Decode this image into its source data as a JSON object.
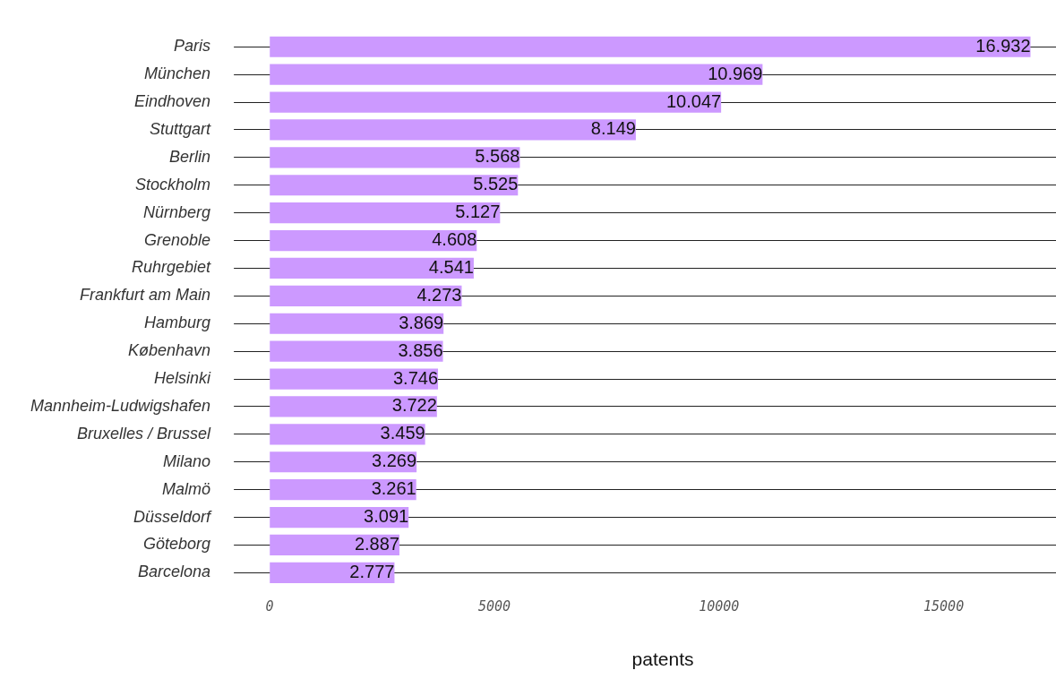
{
  "chart_data": {
    "type": "bar",
    "orientation": "horizontal",
    "xlabel": "patents",
    "categories": [
      "Paris",
      "München",
      "Eindhoven",
      "Stuttgart",
      "Berlin",
      "Stockholm",
      "Nürnberg",
      "Grenoble",
      "Ruhrgebiet",
      "Frankfurt am Main",
      "Hamburg",
      "København",
      "Helsinki",
      "Mannheim-Ludwigshafen",
      "Bruxelles / Brussel",
      "Milano",
      "Malmö",
      "Düsseldorf",
      "Göteborg",
      "Barcelona"
    ],
    "values": [
      16932,
      10969,
      10047,
      8149,
      5568,
      5525,
      5127,
      4608,
      4541,
      4273,
      3869,
      3856,
      3746,
      3722,
      3459,
      3269,
      3261,
      3091,
      2887,
      2777
    ],
    "value_labels": [
      "16.932",
      "10.969",
      "10.047",
      "8.149",
      "5.568",
      "5.525",
      "5.127",
      "4.608",
      "4.541",
      "4.273",
      "3.869",
      "3.856",
      "3.746",
      "3.722",
      "3.459",
      "3.269",
      "3.261",
      "3.091",
      "2.887",
      "2.777"
    ],
    "color": "#cc99ff",
    "xlim": [
      0,
      17500
    ],
    "xticks": [
      0,
      5000,
      10000,
      15000
    ],
    "grid": "y",
    "legend": false
  }
}
